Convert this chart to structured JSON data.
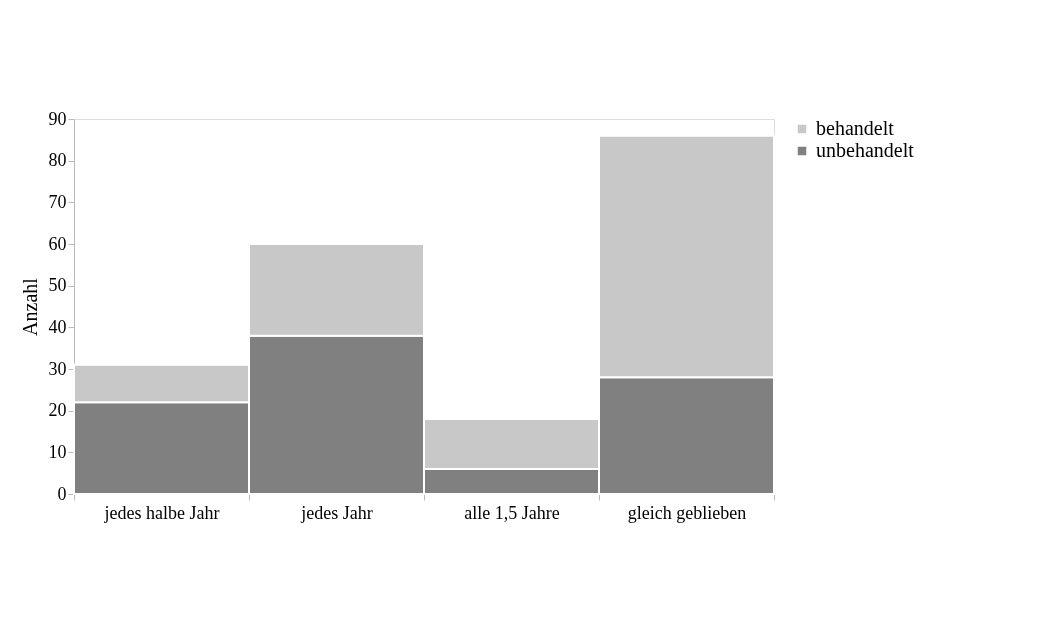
{
  "chart_data": {
    "type": "bar",
    "stacked": true,
    "ylabel": "Anzahl",
    "categories": [
      "jedes halbe Jahr",
      "jedes Jahr",
      "alle 1,5 Jahre",
      "gleich geblieben"
    ],
    "series": [
      {
        "name": "unbehandelt",
        "color": "#808080",
        "values": [
          22,
          38,
          6,
          28
        ]
      },
      {
        "name": "behandelt",
        "color": "#c8c8c8",
        "values": [
          9,
          22,
          12,
          58
        ]
      }
    ],
    "ylim": [
      0,
      90
    ],
    "yticks": [
      0,
      10,
      20,
      30,
      40,
      50,
      60,
      70,
      80,
      90
    ],
    "grid": false,
    "legend": "right"
  }
}
